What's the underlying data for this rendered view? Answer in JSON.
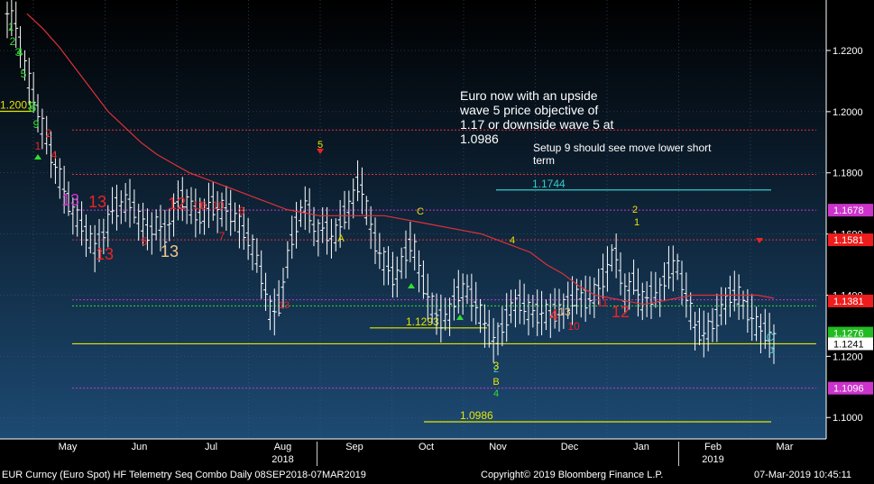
{
  "footer": {
    "left": "EUR Curncy (Euro Spot) HF Telemetry Seq Combo  Daily 08SEP2018-07MAR2019",
    "center": "Copyright© 2019 Bloomberg Finance L.P.",
    "right": "07-Mar-2019 10:45:11"
  },
  "annotations": {
    "main_lines": [
      "Euro now with an upside",
      "wave 5 price objective of",
      "1.17 or downside wave 5 at",
      "1.0986"
    ],
    "setup_lines": [
      "Setup 9 should see move lower short",
      "term"
    ]
  },
  "colors": {
    "bg_top": "#000000",
    "bg_bottom": "#1d4a73",
    "price_bars": "#ffffff",
    "moving_average": "#e0303a",
    "setup_count": "#33dd33",
    "sell_count": "#ee2222",
    "countdown_13": "#f2c48a",
    "accent_yellow": "#e6e600",
    "accent_cyan": "#33cccc",
    "accent_magenta": "#cc33cc"
  },
  "chart_data": {
    "type": "line",
    "title": "",
    "xlabel": "",
    "ylabel": "",
    "y_axis_side": "right",
    "ylim": [
      1.093,
      1.2365
    ],
    "yticks": [
      1.22,
      1.2,
      1.18,
      1.16,
      1.14,
      1.12,
      1.1
    ],
    "ytick_labels": [
      "1.2200",
      "1.2000",
      "1.1800",
      "1.1600",
      "1.1400",
      "1.1200",
      "1.1000"
    ],
    "months": [
      "May",
      "Jun",
      "Jul",
      "Aug",
      "Sep",
      "Oct",
      "Nov",
      "Dec",
      "Jan",
      "Feb",
      "Mar"
    ],
    "year_labels": [
      {
        "label": "2018",
        "near": "Aug"
      },
      {
        "label": "2019",
        "near": "Feb"
      }
    ],
    "series": [
      {
        "kind": "daily_bars",
        "color": "price_bars",
        "close_path": [
          1.232,
          1.228,
          1.215,
          1.205,
          1.195,
          1.186,
          1.178,
          1.17,
          1.165,
          1.16,
          1.155,
          1.16,
          1.168,
          1.17,
          1.17,
          1.165,
          1.16,
          1.163,
          1.16,
          1.168,
          1.172,
          1.168,
          1.165,
          1.17,
          1.168,
          1.168,
          1.165,
          1.16,
          1.155,
          1.145,
          1.133,
          1.138,
          1.155,
          1.165,
          1.17,
          1.16,
          1.162,
          1.158,
          1.165,
          1.17,
          1.178,
          1.165,
          1.155,
          1.15,
          1.145,
          1.152,
          1.158,
          1.145,
          1.138,
          1.132,
          1.133,
          1.14,
          1.142,
          1.138,
          1.132,
          1.125,
          1.128,
          1.135,
          1.138,
          1.135,
          1.134,
          1.134,
          1.134,
          1.136,
          1.138,
          1.14,
          1.138,
          1.142,
          1.148,
          1.155,
          1.14,
          1.145,
          1.138,
          1.14,
          1.14,
          1.148,
          1.15,
          1.14,
          1.13,
          1.127,
          1.13,
          1.135,
          1.14,
          1.14,
          1.135,
          1.13,
          1.128,
          1.125
        ]
      },
      {
        "kind": "moving_average",
        "color": "moving_average",
        "values": [
          1.232,
          1.227,
          1.221,
          1.214,
          1.207,
          1.2,
          1.195,
          1.19,
          1.186,
          1.183,
          1.18,
          1.178,
          1.176,
          1.174,
          1.172,
          1.17,
          1.168,
          1.167,
          1.166,
          1.166,
          1.166,
          1.166,
          1.166,
          1.165,
          1.164,
          1.163,
          1.162,
          1.161,
          1.16,
          1.158,
          1.156,
          1.154,
          1.15,
          1.147,
          1.143,
          1.14,
          1.139,
          1.138,
          1.137,
          1.138,
          1.139,
          1.14,
          1.14,
          1.14,
          1.14,
          1.14,
          1.139
        ]
      }
    ],
    "levels": [
      {
        "value": 1.2001,
        "label": "1.2001",
        "color": "accent_yellow",
        "style": "solid"
      },
      {
        "value": 1.1744,
        "label": "1.1744",
        "color": "accent_cyan",
        "style": "solid"
      },
      {
        "value": 1.1293,
        "label": "1.1293",
        "color": "accent_yellow",
        "style": "solid"
      },
      {
        "value": 1.0986,
        "label": "1.0986",
        "color": "accent_yellow",
        "style": "solid"
      },
      {
        "value": 1.194,
        "color": "moving_average",
        "style": "dotted"
      },
      {
        "value": 1.1795,
        "color": "moving_average",
        "style": "dotted"
      },
      {
        "value": 1.1581,
        "color": "moving_average",
        "style": "dotted"
      },
      {
        "value": 1.1678,
        "color": "accent_magenta",
        "style": "dotted"
      },
      {
        "value": 1.1385,
        "color": "accent_magenta",
        "style": "dotted"
      },
      {
        "value": 1.1096,
        "color": "accent_magenta",
        "style": "dotted"
      },
      {
        "value": 1.1365,
        "color": "setup_count",
        "style": "dotted"
      },
      {
        "value": 1.1241,
        "color": "accent_yellow",
        "style": "solid"
      }
    ],
    "price_tags": [
      {
        "value": 1.1678,
        "label": "1.1678",
        "bg": "#cc33cc",
        "fg": "#ffffff"
      },
      {
        "value": 1.1581,
        "label": "1.1581",
        "bg": "#ee1c1c",
        "fg": "#ffffff"
      },
      {
        "value": 1.1381,
        "label": "1.1381",
        "bg": "#ee1c1c",
        "fg": "#ffffff"
      },
      {
        "value": 1.1276,
        "label": "1.1276",
        "bg": "#22bb22",
        "fg": "#ffffff"
      },
      {
        "value": 1.1241,
        "label": "1.1241",
        "bg": "#ffffff",
        "fg": "#000000"
      },
      {
        "value": 1.1096,
        "label": "1.1096",
        "bg": "#cc33cc",
        "fg": "#ffffff"
      }
    ],
    "markers": [
      {
        "t": "1",
        "c": "setup_count"
      },
      {
        "t": "2",
        "c": "setup_count"
      },
      {
        "t": "3",
        "c": "setup_count"
      },
      {
        "t": "4",
        "c": "setup_count"
      },
      {
        "t": "5",
        "c": "setup_count"
      },
      {
        "t": "8",
        "c": "setup_count"
      },
      {
        "t": "9",
        "c": "setup_count"
      },
      {
        "t": "1",
        "c": "sell_count"
      },
      {
        "t": "2",
        "c": "sell_count"
      },
      {
        "t": "4",
        "c": "sell_count"
      },
      {
        "t": "13",
        "c": "accent_magenta"
      },
      {
        "t": "13",
        "c": "sell_count"
      },
      {
        "t": "13",
        "c": "countdown_13"
      },
      {
        "t": "5",
        "c": "sell_count"
      },
      {
        "t": "6",
        "c": "sell_count"
      },
      {
        "t": "7",
        "c": "sell_count"
      },
      {
        "t": "8",
        "c": "sell_count"
      },
      {
        "t": "10",
        "c": "sell_count"
      },
      {
        "t": "11",
        "c": "sell_count"
      },
      {
        "t": "12",
        "c": "sell_count"
      },
      {
        "t": "13",
        "c": "sell_count"
      },
      {
        "t": "5",
        "c": "accent_yellow"
      },
      {
        "t": "A",
        "c": "accent_yellow"
      },
      {
        "t": "B",
        "c": "accent_yellow"
      },
      {
        "t": "C",
        "c": "accent_yellow"
      },
      {
        "t": "2",
        "c": "accent_yellow"
      },
      {
        "t": "4",
        "c": "accent_yellow"
      },
      {
        "t": "1",
        "c": "accent_yellow"
      },
      {
        "t": "1",
        "c": "accent_cyan"
      },
      {
        "t": "2",
        "c": "accent_cyan"
      },
      {
        "t": "C",
        "c": "accent_cyan"
      },
      {
        "t": "4",
        "c": "setup_count"
      },
      {
        "t": "3",
        "c": "accent_yellow"
      },
      {
        "t": "4",
        "c": "sell_count"
      },
      {
        "t": "13",
        "c": "countdown_13"
      },
      {
        "t": "10",
        "c": "sell_count"
      },
      {
        "t": "11",
        "c": "sell_count"
      },
      {
        "t": "12",
        "c": "sell_count"
      },
      {
        "t": "13",
        "c": "sell_count"
      }
    ]
  }
}
